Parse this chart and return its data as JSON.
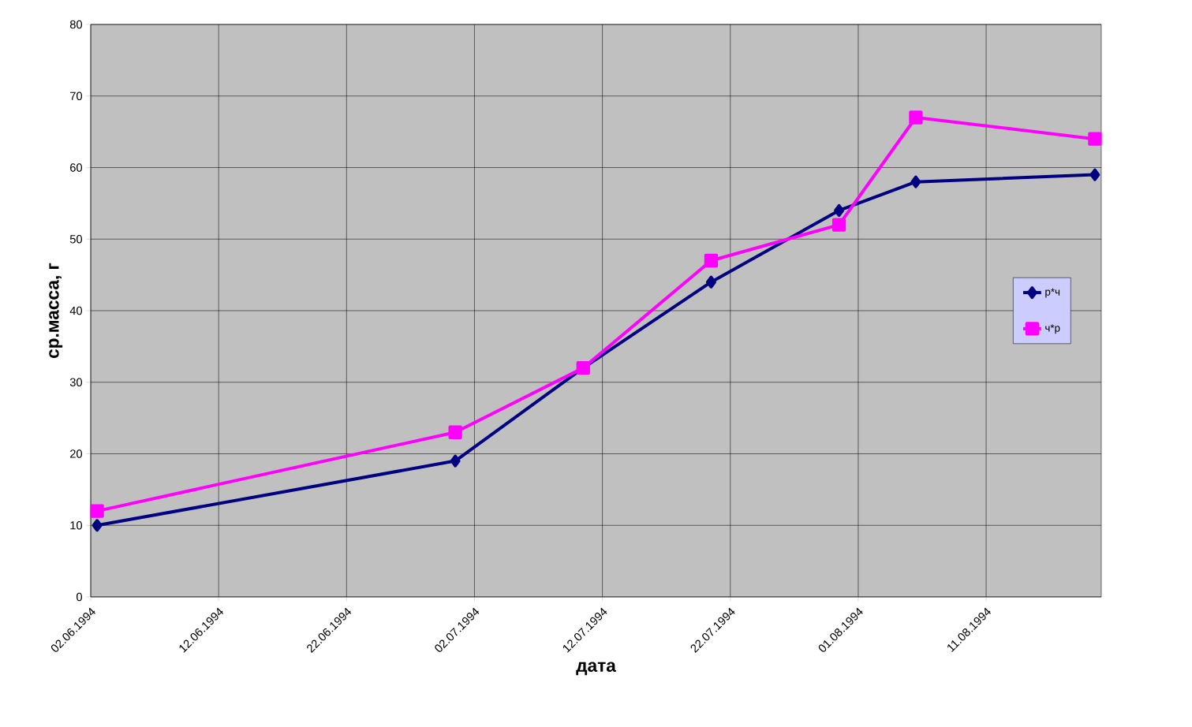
{
  "chart_data": {
    "type": "line",
    "xlabel": "дата",
    "ylabel": "ср.масса, г",
    "x": [
      "1994-06-02T12:00",
      "1994-06-30T12:00",
      "1994-07-10T12:00",
      "1994-07-20T12:00",
      "1994-07-30T12:00",
      "1994-08-05T12:00",
      "1994-08-19T12:00"
    ],
    "series": [
      {
        "name": "р*ч",
        "color": "#000080",
        "marker": "diamond",
        "values": [
          10,
          19,
          32,
          44,
          54,
          58,
          59
        ]
      },
      {
        "name": "ч*р",
        "color": "#ff00ff",
        "marker": "square",
        "values": [
          12,
          23,
          32,
          47,
          52,
          67,
          64
        ]
      }
    ],
    "xlim": [
      "1994-06-02",
      "1994-08-20"
    ],
    "xticks": [
      {
        "value": "1994-06-02",
        "label": "02.06.1994"
      },
      {
        "value": "1994-06-12",
        "label": "12.06.1994"
      },
      {
        "value": "1994-06-22",
        "label": "22.06.1994"
      },
      {
        "value": "1994-07-02",
        "label": "02.07.1994"
      },
      {
        "value": "1994-07-12",
        "label": "12.07.1994"
      },
      {
        "value": "1994-07-22",
        "label": "22.07.1994"
      },
      {
        "value": "1994-08-01",
        "label": "01.08.1994"
      },
      {
        "value": "1994-08-11",
        "label": "11.08.1994"
      }
    ],
    "ylim": [
      0,
      80
    ],
    "yticks": [
      0,
      10,
      20,
      30,
      40,
      50,
      60,
      70,
      80
    ],
    "grid": true,
    "legend": "right",
    "line_style": "solid"
  }
}
